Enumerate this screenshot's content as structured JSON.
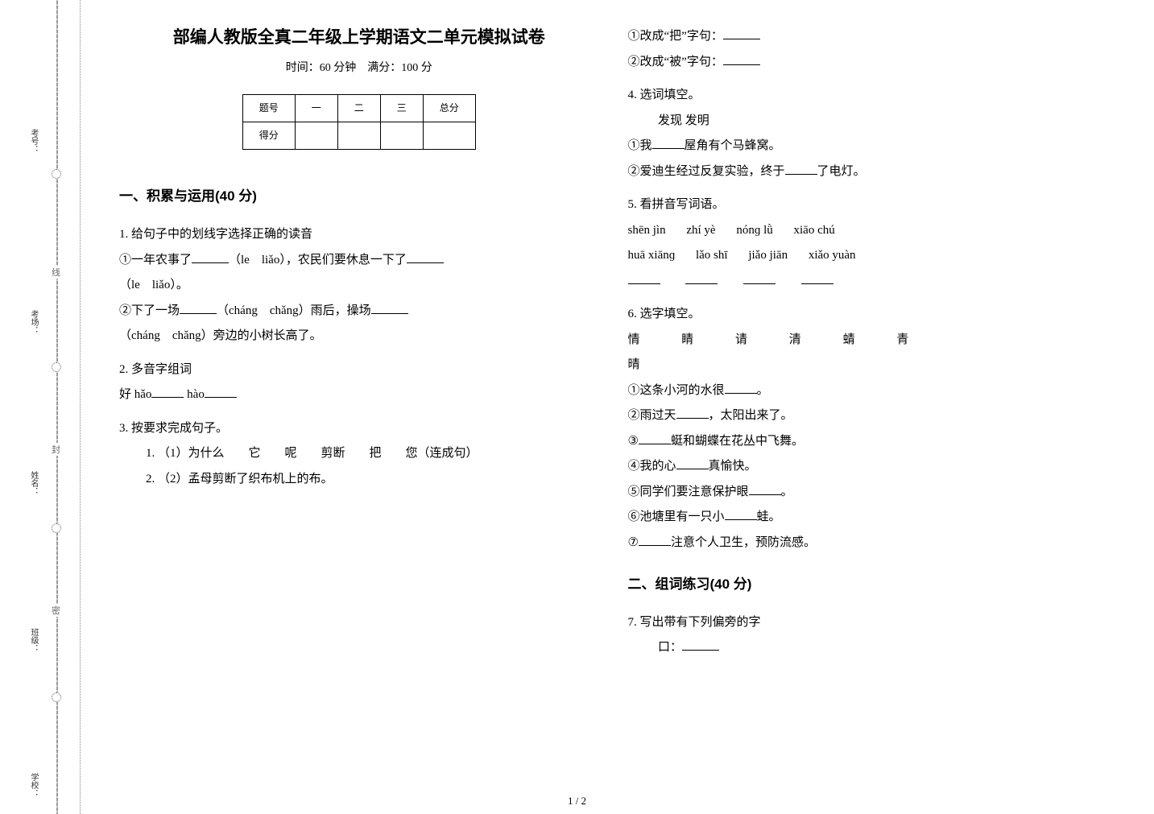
{
  "binding": {
    "label1": "考号：",
    "label2": "考场：",
    "label3": "姓名：",
    "label4": "班级：",
    "label5": "学校：",
    "seam1": "线",
    "seam2": "封",
    "seam3": "密"
  },
  "header": {
    "title": "部编人教版全真二年级上学期语文二单元模拟试卷",
    "time_score": "时间：60 分钟　满分：100 分"
  },
  "score_table": {
    "head": [
      "题号",
      "一",
      "二",
      "三",
      "总分"
    ],
    "row_label": "得分"
  },
  "section1": {
    "heading": "一、积累与运用(40 分)",
    "q1": {
      "stem": "1.  给句子中的划线字选择正确的读音",
      "line1a": "①一年农事了",
      "line1b": "（le　liǎo），农民们要休息一下了",
      "line1c": "（le　liǎo）。",
      "line2a": "②下了一场",
      "line2b": "（cháng　chǎng）雨后，操场",
      "line2c": "（cháng　chǎng）旁边的小树长高了。"
    },
    "q2": {
      "stem": "2.  多音字组词",
      "line1a": "好 hǎo",
      "line1b": " hào"
    },
    "q3": {
      "stem": "3.  按要求完成句子。",
      "sub1": "（1）为什么　　它　　呢　　剪断　　把　　您（连成句）",
      "sub2": "（2）孟母剪断了织布机上的布。",
      "r1": "①改成“把”字句：",
      "r2": "②改成“被”字句："
    },
    "q4": {
      "stem": "4.  选词填空。",
      "opts": "发现  发明",
      "l1a": "①我",
      "l1b": "屋角有个马蜂窝。",
      "l2a": "②爱迪生经过反复实验，终于",
      "l2b": "了电灯。"
    },
    "q5": {
      "stem": "5.  看拼音写词语。",
      "row1": [
        "shēn jìn",
        "zhí yè",
        "nónɡ lǜ",
        "xiāo chú"
      ],
      "row2": [
        "huā xiānɡ",
        "lǎo shī",
        "jiǎo jiān",
        "xiǎo yuàn"
      ]
    },
    "q6": {
      "stem": "6.  选字填空。",
      "opts": [
        "情",
        "睛",
        "请",
        "清",
        "蜻",
        "青",
        "晴"
      ],
      "l1": "①这条小河的水很",
      "l1e": "。",
      "l2a": "②雨过天",
      "l2b": "，太阳出来了。",
      "l3a": "③",
      "l3b": "蜓和蝴蝶在花丛中飞舞。",
      "l4a": "④我的心",
      "l4b": "真愉快。",
      "l5a": "⑤同学们要注意保护眼",
      "l5b": "。",
      "l6a": "⑥池塘里有一只小",
      "l6b": "蛙。",
      "l7a": "⑦",
      "l7b": "注意个人卫生，预防流感。"
    }
  },
  "section2": {
    "heading": "二、组词练习(40 分)",
    "q7": {
      "stem": "7.  写出带有下列偏旁的字",
      "line": "口："
    }
  },
  "footer": "1 / 2"
}
